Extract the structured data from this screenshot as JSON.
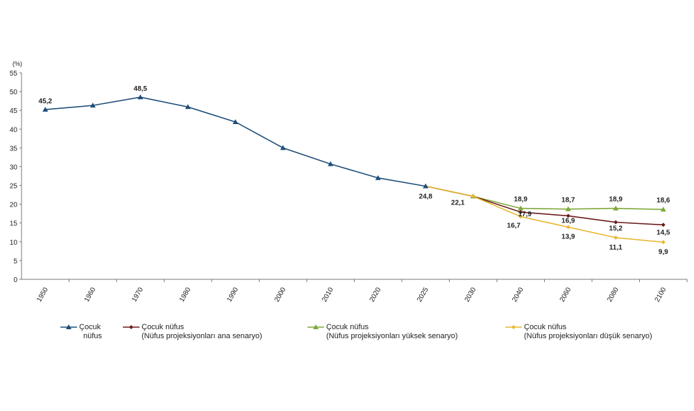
{
  "chart_data": {
    "type": "line",
    "title": "",
    "ylabel": "(%)",
    "xlabel": "",
    "ylim": [
      0,
      55
    ],
    "yticks": [
      0,
      5,
      10,
      15,
      20,
      25,
      30,
      35,
      40,
      45,
      50,
      55
    ],
    "categories": [
      "1950",
      "1960",
      "1970",
      "1980",
      "1990",
      "2000",
      "2010",
      "2020",
      "2025",
      "2030",
      "2040",
      "2060",
      "2080",
      "2100"
    ],
    "grid": false,
    "legend_position": "bottom",
    "series": [
      {
        "name": "Çocuk nüfus",
        "name_lines": [
          "Çocuk",
          "nüfus"
        ],
        "color": "#1f4e79",
        "marker": "triangle",
        "values": [
          45.2,
          46.3,
          48.5,
          45.9,
          41.9,
          35.0,
          30.7,
          27.0,
          24.8,
          null,
          null,
          null,
          null,
          null
        ],
        "labels": {
          "0": "45,2",
          "2": "48,5",
          "8": "24,8"
        }
      },
      {
        "name": "Çocuk nüfus (Nüfus projeksiyonları ana senaryo)",
        "name_lines": [
          "Çocuk nüfus",
          "(Nüfus projeksiyonları ana senaryo)"
        ],
        "color": "#6b1a1a",
        "marker": "diamond",
        "values": [
          null,
          null,
          null,
          null,
          null,
          null,
          null,
          null,
          24.8,
          22.1,
          17.9,
          16.9,
          15.2,
          14.5
        ],
        "labels": {
          "9": "22,1",
          "10": "17,9",
          "11": "16,9",
          "12": "15,2",
          "13": "14,5"
        }
      },
      {
        "name": "Çocuk nüfus (Nüfus projeksiyonları yüksek senaryo)",
        "name_lines": [
          "Çocuk nüfus",
          "(Nüfus projeksiyonları yüksek senaryo)"
        ],
        "color": "#7ea83a",
        "marker": "triangle",
        "values": [
          null,
          null,
          null,
          null,
          null,
          null,
          null,
          null,
          24.8,
          22.1,
          18.9,
          18.7,
          18.9,
          18.6
        ],
        "labels": {
          "10": "18,9",
          "11": "18,7",
          "12": "18,9",
          "13": "18,6"
        }
      },
      {
        "name": "Çocuk nüfus (Nüfus projeksiyonları düşük senaryo)",
        "name_lines": [
          "Çocuk nüfus",
          "(Nüfus projeksiyonları düşük senaryo)"
        ],
        "color": "#e8b730",
        "marker": "diamond",
        "values": [
          null,
          null,
          null,
          null,
          null,
          null,
          null,
          null,
          24.8,
          22.1,
          16.7,
          13.9,
          11.1,
          9.9
        ],
        "labels": {
          "10": "16,7",
          "11": "13,9",
          "12": "11,1",
          "13": "9,9"
        }
      }
    ]
  }
}
